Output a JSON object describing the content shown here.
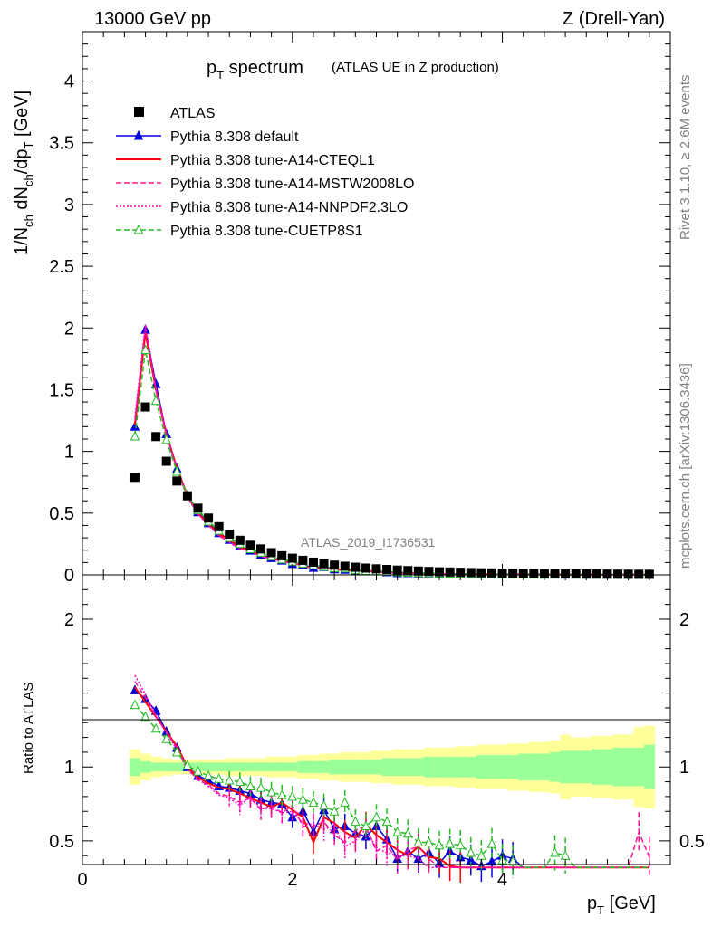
{
  "header": {
    "left": "13000 GeV pp",
    "right": "Z (Drell-Yan)"
  },
  "side": {
    "rivet": "Rivet 3.1.10, ≥ 2.6M events",
    "mcplots": "mcplots.cern.ch [arXiv:1306.3436]"
  },
  "chart_data": {
    "type": "scatter",
    "title": "p_T spectrum",
    "title_note": "(ATLAS UE in Z production)",
    "watermark": "ATLAS_2019_I1736531",
    "xlabel": "p_T [GeV]",
    "ylabel": "1/N_ch dN_ch/dp_T [GeV]",
    "ratio_ylabel": "Ratio to ATLAS",
    "xlim": [
      0,
      5.6
    ],
    "ylim": [
      0,
      4.4
    ],
    "ratio_ylim": [
      0.34,
      2.3
    ],
    "x_ticks": [
      "0",
      "2",
      "4"
    ],
    "y_ticks": [
      "0",
      "0.5",
      "1",
      "1.5",
      "2",
      "2.5",
      "3",
      "3.5",
      "4"
    ],
    "ratio_ticks": [
      "0.5",
      "1",
      "2"
    ],
    "x": [
      0.5,
      0.6,
      0.7,
      0.8,
      0.9,
      1.0,
      1.1,
      1.2,
      1.3,
      1.4,
      1.5,
      1.6,
      1.7,
      1.8,
      1.9,
      2.0,
      2.1,
      2.2,
      2.3,
      2.4,
      2.5,
      2.6,
      2.7,
      2.8,
      2.9,
      3.0,
      3.1,
      3.2,
      3.3,
      3.4,
      3.5,
      3.6,
      3.7,
      3.8,
      3.9,
      4.0,
      4.1,
      4.2,
      4.3,
      4.4,
      4.5,
      4.6,
      4.7,
      4.8,
      4.9,
      5.0,
      5.1,
      5.2,
      5.3,
      5.4
    ],
    "data": {
      "name": "ATLAS",
      "values": [
        0.79,
        1.36,
        1.12,
        0.92,
        0.76,
        0.64,
        0.54,
        0.46,
        0.39,
        0.33,
        0.28,
        0.24,
        0.21,
        0.18,
        0.155,
        0.135,
        0.118,
        0.103,
        0.09,
        0.079,
        0.07,
        0.062,
        0.055,
        0.049,
        0.044,
        0.039,
        0.035,
        0.031,
        0.028,
        0.025,
        0.023,
        0.021,
        0.019,
        0.017,
        0.016,
        0.014,
        0.013,
        0.012,
        0.011,
        0.01,
        0.009,
        0.0085,
        0.008,
        0.0075,
        0.007,
        0.0065,
        0.006,
        0.0055,
        0.005,
        0.0048
      ],
      "stat_band_rel": [
        0.06,
        0.04,
        0.03,
        0.03,
        0.03,
        0.03,
        0.03,
        0.03,
        0.03,
        0.03,
        0.03,
        0.03,
        0.03,
        0.03,
        0.03,
        0.03,
        0.04,
        0.04,
        0.04,
        0.05,
        0.05,
        0.05,
        0.05,
        0.05,
        0.06,
        0.06,
        0.06,
        0.06,
        0.07,
        0.07,
        0.07,
        0.07,
        0.07,
        0.08,
        0.08,
        0.08,
        0.08,
        0.09,
        0.09,
        0.09,
        0.1,
        0.11,
        0.11,
        0.11,
        0.12,
        0.12,
        0.13,
        0.13,
        0.13,
        0.15
      ],
      "total_band_rel": [
        0.12,
        0.09,
        0.07,
        0.06,
        0.05,
        0.05,
        0.05,
        0.05,
        0.05,
        0.06,
        0.06,
        0.06,
        0.06,
        0.07,
        0.07,
        0.07,
        0.08,
        0.08,
        0.09,
        0.09,
        0.1,
        0.1,
        0.1,
        0.11,
        0.11,
        0.12,
        0.12,
        0.12,
        0.13,
        0.13,
        0.13,
        0.14,
        0.14,
        0.15,
        0.15,
        0.15,
        0.16,
        0.16,
        0.17,
        0.17,
        0.18,
        0.22,
        0.2,
        0.2,
        0.21,
        0.21,
        0.22,
        0.22,
        0.27,
        0.28
      ]
    },
    "series": [
      {
        "name": "Pythia 8.308 default",
        "color": "#0000dd",
        "style": "solid",
        "marker": "triangle-filled",
        "ratio": [
          1.52,
          1.46,
          1.38,
          1.24,
          1.13,
          1.0,
          0.94,
          0.91,
          0.87,
          0.86,
          0.84,
          0.82,
          0.78,
          0.76,
          0.75,
          0.66,
          0.7,
          0.56,
          0.71,
          0.58,
          0.6,
          0.55,
          0.53,
          0.6,
          0.51,
          0.38,
          0.43,
          0.38,
          0.42,
          0.35,
          0.43,
          0.39,
          0.37,
          0.33,
          0.36,
          0.4,
          0.38,
          0.3,
          0.3,
          0.3,
          0.3,
          0.3,
          0.3,
          0.3,
          0.3,
          0.3,
          0.3,
          0.3,
          0.3,
          0.3
        ]
      },
      {
        "name": "Pythia 8.308 tune-A14-CTEQL1",
        "color": "#ff0000",
        "style": "solid",
        "marker": "none",
        "ratio": [
          1.54,
          1.44,
          1.34,
          1.24,
          1.14,
          1.0,
          0.93,
          0.89,
          0.86,
          0.85,
          0.82,
          0.79,
          0.76,
          0.73,
          0.76,
          0.71,
          0.66,
          0.49,
          0.66,
          0.62,
          0.56,
          0.52,
          0.61,
          0.54,
          0.49,
          0.44,
          0.4,
          0.46,
          0.39,
          0.38,
          0.33,
          0.32,
          0.3,
          0.3,
          0.3,
          0.3,
          0.3,
          0.3,
          0.3,
          0.3,
          0.3,
          0.3,
          0.3,
          0.3,
          0.3,
          0.3,
          0.3,
          0.3,
          0.3,
          0.3
        ]
      },
      {
        "name": "Pythia 8.308 tune-A14-MSTW2008LO",
        "color": "#ff1493",
        "style": "dashed",
        "marker": "none",
        "ratio": [
          1.58,
          1.47,
          1.34,
          1.24,
          1.13,
          0.99,
          0.91,
          0.88,
          0.82,
          0.8,
          0.76,
          0.79,
          0.71,
          0.74,
          0.69,
          0.74,
          0.6,
          0.6,
          0.63,
          0.54,
          0.49,
          0.57,
          0.6,
          0.43,
          0.47,
          0.37,
          0.44,
          0.46,
          0.38,
          0.3,
          0.3,
          0.3,
          0.3,
          0.3,
          0.3,
          0.3,
          0.3,
          0.3,
          0.3,
          0.3,
          0.3,
          0.3,
          0.3,
          0.3,
          0.3,
          0.3,
          0.3,
          0.3,
          0.56,
          0.39
        ]
      },
      {
        "name": "Pythia 8.308 tune-A14-NNPDF2.3LO",
        "color": "#ff00c8",
        "style": "dotted",
        "marker": "none",
        "ratio": [
          1.62,
          1.49,
          1.35,
          1.23,
          1.12,
          0.98,
          0.92,
          0.87,
          0.81,
          0.79,
          0.74,
          0.8,
          0.72,
          0.72,
          0.69,
          0.7,
          0.62,
          0.61,
          0.58,
          0.6,
          0.46,
          0.5,
          0.58,
          0.45,
          0.42,
          0.4,
          0.4,
          0.38,
          0.3,
          0.3,
          0.3,
          0.3,
          0.3,
          0.3,
          0.3,
          0.3,
          0.3,
          0.3,
          0.3,
          0.3,
          0.3,
          0.3,
          0.3,
          0.3,
          0.3,
          0.3,
          0.3,
          0.3,
          0.3,
          0.3
        ]
      },
      {
        "name": "Pythia 8.308 tune-CUETP8S1",
        "color": "#22bb22",
        "style": "dashed",
        "marker": "triangle-open",
        "ratio": [
          1.42,
          1.34,
          1.26,
          1.19,
          1.1,
          1.01,
          0.97,
          0.94,
          0.92,
          0.91,
          0.9,
          0.87,
          0.86,
          0.83,
          0.81,
          0.8,
          0.78,
          0.76,
          0.74,
          0.7,
          0.76,
          0.63,
          0.6,
          0.66,
          0.63,
          0.56,
          0.55,
          0.49,
          0.49,
          0.47,
          0.48,
          0.47,
          0.42,
          0.4,
          0.48,
          0.37,
          0.36,
          0.3,
          0.3,
          0.3,
          0.42,
          0.4,
          0.3,
          0.3,
          0.3,
          0.3,
          0.3,
          0.3,
          0.3,
          0.3
        ]
      }
    ],
    "main_scale": [
      1.0,
      1.0,
      1.0,
      1.0,
      1.0,
      1.0,
      1.0,
      1.0,
      1.0,
      1.0,
      1.0,
      1.0,
      1.0,
      1.0,
      1.0,
      1.0,
      1.0,
      1.0,
      1.0,
      1.0,
      1.0,
      1.0,
      1.0,
      1.0,
      1.0,
      1.0,
      1.0,
      1.0,
      1.0,
      1.0,
      1.0,
      1.0,
      1.0,
      1.0,
      1.0,
      1.0,
      1.0,
      1.0,
      1.0,
      1.0,
      1.0,
      1.0,
      1.0,
      1.0,
      1.0,
      1.0,
      1.0,
      1.0,
      1.0,
      1.0
    ]
  }
}
